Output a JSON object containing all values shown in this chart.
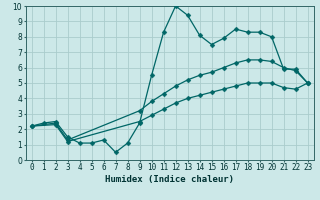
{
  "xlabel": "Humidex (Indice chaleur)",
  "bg_color": "#cce8e8",
  "grid_color": "#aacccc",
  "line_color": "#006666",
  "xlim": [
    -0.5,
    23.5
  ],
  "ylim": [
    0,
    10
  ],
  "xticks": [
    0,
    1,
    2,
    3,
    4,
    5,
    6,
    7,
    8,
    9,
    10,
    11,
    12,
    13,
    14,
    15,
    16,
    17,
    18,
    19,
    20,
    21,
    22,
    23
  ],
  "yticks": [
    0,
    1,
    2,
    3,
    4,
    5,
    6,
    7,
    8,
    9,
    10
  ],
  "line1_x": [
    0,
    1,
    2,
    3,
    4,
    5,
    6,
    7,
    8,
    9,
    10,
    11,
    12,
    13,
    14,
    15,
    16,
    17,
    18,
    19,
    20,
    21,
    22,
    23
  ],
  "line1_y": [
    2.2,
    2.4,
    2.5,
    1.5,
    1.1,
    1.1,
    1.3,
    0.5,
    1.1,
    2.4,
    5.5,
    8.3,
    10.0,
    9.4,
    8.1,
    7.5,
    7.9,
    8.5,
    8.3,
    8.3,
    8.0,
    5.9,
    5.9,
    5.0
  ],
  "line2_x": [
    0,
    2,
    3,
    9,
    10,
    11,
    12,
    13,
    14,
    15,
    16,
    17,
    18,
    19,
    20,
    21,
    22,
    23
  ],
  "line2_y": [
    2.2,
    2.4,
    1.3,
    3.2,
    3.8,
    4.3,
    4.8,
    5.2,
    5.5,
    5.7,
    6.0,
    6.3,
    6.5,
    6.5,
    6.4,
    6.0,
    5.8,
    5.0
  ],
  "line3_x": [
    0,
    2,
    3,
    9,
    10,
    11,
    12,
    13,
    14,
    15,
    16,
    17,
    18,
    19,
    20,
    21,
    22,
    23
  ],
  "line3_y": [
    2.2,
    2.3,
    1.2,
    2.5,
    2.9,
    3.3,
    3.7,
    4.0,
    4.2,
    4.4,
    4.6,
    4.8,
    5.0,
    5.0,
    5.0,
    4.7,
    4.6,
    5.0
  ],
  "tick_fontsize": 5.5,
  "xlabel_fontsize": 6.5,
  "marker_size": 2.5,
  "line_width": 0.9
}
